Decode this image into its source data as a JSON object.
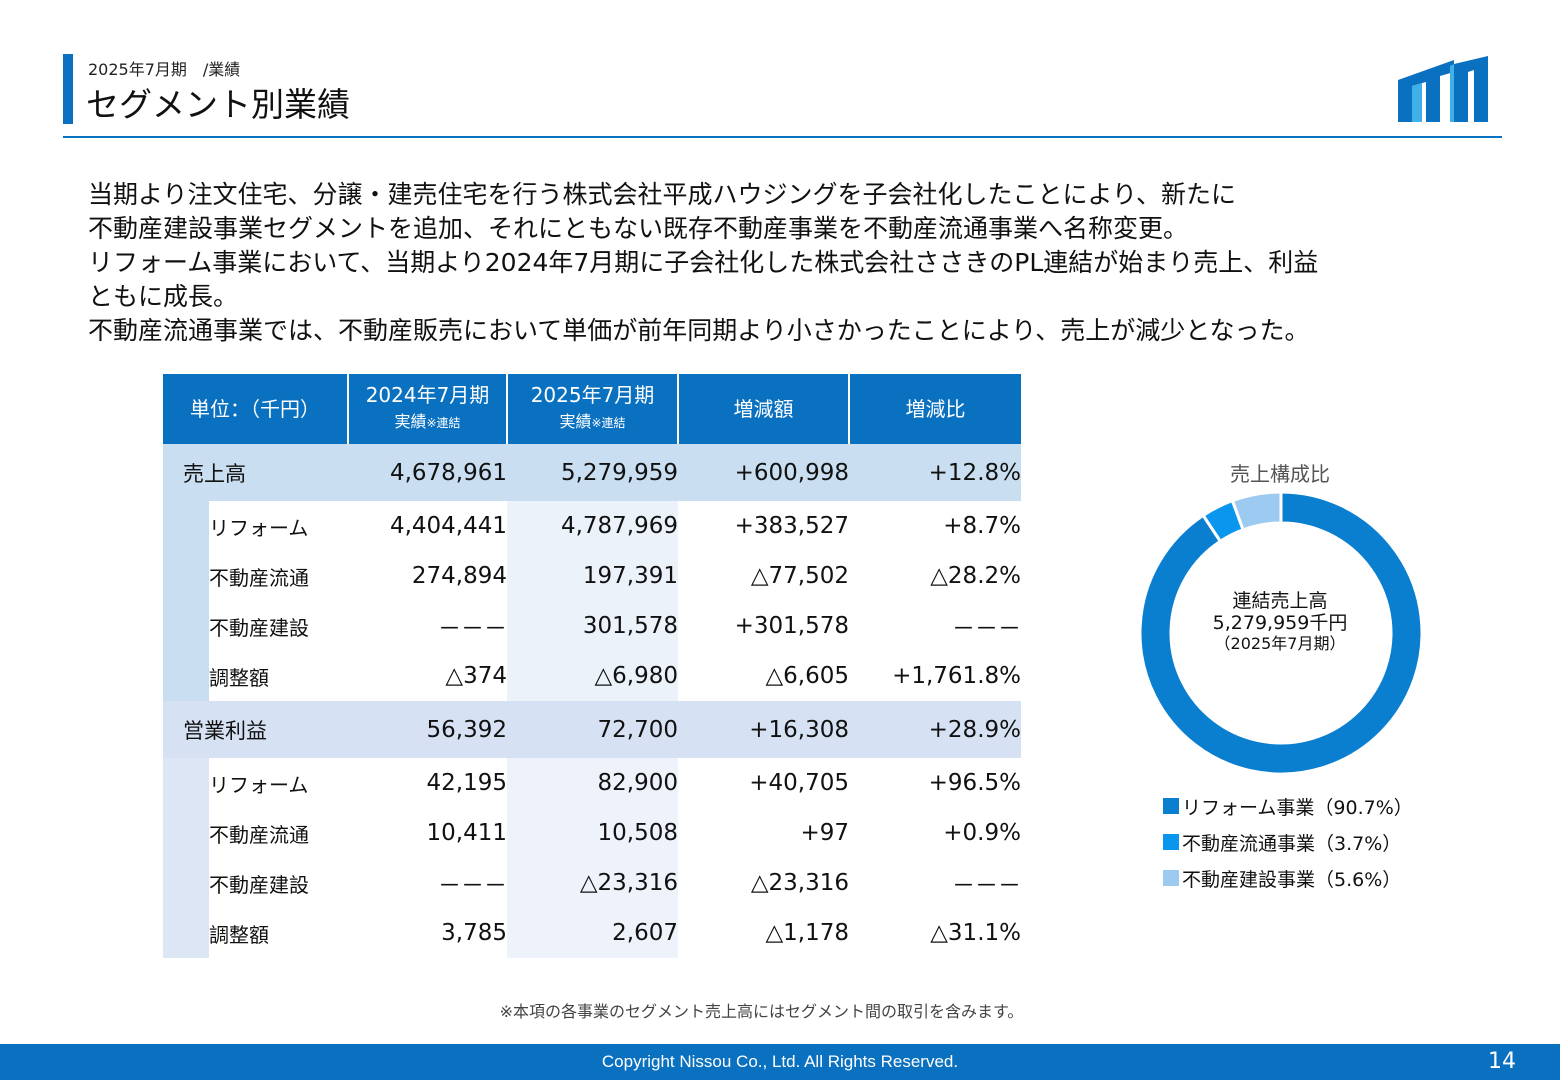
{
  "header": {
    "subtitle": "2025年7月期　/業績",
    "title": "セグメント別業績"
  },
  "summary": [
    "当期より注文住宅、分譲・建売住宅を行う株式会社平成ハウジングを子会社化したことにより、新たに",
    "不動産建設事業セグメントを追加、それにともない既存不動産事業を不動産流通事業へ名称変更。",
    "リフォーム事業において、当期より2024年7月期に子会社化した株式会社ささきのPL連結が始まり売上、利益",
    "ともに成長。",
    "不動産流通事業では、不動産販売において単価が前年同期より小さかったことにより、売上が減少となった。"
  ],
  "table": {
    "headers": {
      "unit": "単位：（千円）",
      "prev_line1": "2024年7月期",
      "prev_line2": "実績",
      "prev_note": "※連結",
      "curr_line1": "2025年7月期",
      "curr_line2": "実績",
      "curr_note": "※連結",
      "diff": "増減額",
      "ratio": "増減比"
    },
    "sales": {
      "label": "売上高",
      "prev": "4,678,961",
      "curr": "5,279,959",
      "diff": "+600,998",
      "ratio": "+12.8%",
      "rows": [
        {
          "label": "リフォーム",
          "prev": "4,404,441",
          "curr": "4,787,969",
          "diff": "+383,527",
          "ratio": "+8.7%"
        },
        {
          "label": "不動産流通",
          "prev": "274,894",
          "curr": "197,391",
          "diff": "△77,502",
          "ratio": "△28.2%"
        },
        {
          "label": "不動産建設",
          "prev": "－－－",
          "curr": "301,578",
          "diff": "+301,578",
          "ratio": "－－－"
        },
        {
          "label": "調整額",
          "prev": "△374",
          "curr": "△6,980",
          "diff": "△6,605",
          "ratio": "+1,761.8%"
        }
      ]
    },
    "op": {
      "label": "営業利益",
      "prev": "56,392",
      "curr": "72,700",
      "diff": "+16,308",
      "ratio": "+28.9%",
      "rows": [
        {
          "label": "リフォーム",
          "prev": "42,195",
          "curr": "82,900",
          "diff": "+40,705",
          "ratio": "+96.5%"
        },
        {
          "label": "不動産流通",
          "prev": "10,411",
          "curr": "10,508",
          "diff": "+97",
          "ratio": "+0.9%"
        },
        {
          "label": "不動産建設",
          "prev": "－－－",
          "curr": "△23,316",
          "diff": "△23,316",
          "ratio": "－－－"
        },
        {
          "label": "調整額",
          "prev": "3,785",
          "curr": "2,607",
          "diff": "△1,178",
          "ratio": "△31.1%"
        }
      ]
    }
  },
  "chart_data": {
    "type": "pie",
    "title": "売上構成比",
    "center_lines": [
      "連結売上高",
      "5,279,959千円",
      "（2025年7月期）"
    ],
    "slices": [
      {
        "label": "リフォーム事業（90.7%）",
        "value": 90.7,
        "color": "#0a7fd0"
      },
      {
        "label": "不動産流通事業（3.7%）",
        "value": 3.7,
        "color": "#0b96ee"
      },
      {
        "label": "不動産建設事業（5.6%）",
        "value": 5.6,
        "color": "#9ccaf0"
      }
    ]
  },
  "note": "※本項の各事業のセグメント売上高にはセグメント間の取引を含みます。",
  "footer": {
    "copyright": "Copyright Nissou Co., Ltd. All Rights Reserved.",
    "page": "14"
  },
  "colors": {
    "accent": "#0a70c0",
    "header_row": "#0a70c0",
    "total_row": "#c9def0"
  }
}
